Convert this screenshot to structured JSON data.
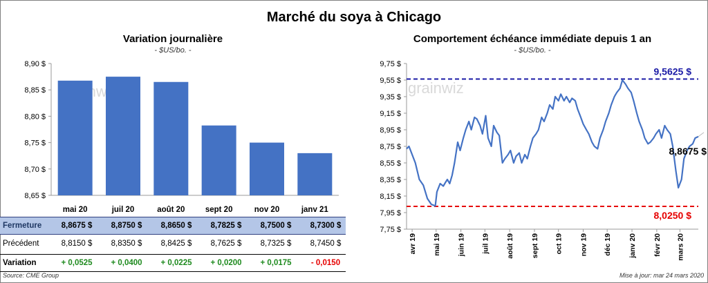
{
  "title": "Marché du soya à Chicago",
  "left_chart": {
    "title": "Variation journalière",
    "unit": "- $US/bo. -"
  },
  "right_chart": {
    "title": "Comportement  échéance immédiate depuis 1 an",
    "unit": "- $US/bo. -"
  },
  "watermark": "grainwiz",
  "table": {
    "row_close_label": "Fermeture",
    "row_prev_label": "Précédent",
    "row_var_label": "Variation",
    "close": [
      "8,8675  $",
      "8,8750  $",
      "8,8650  $",
      "8,7825  $",
      "8,7500  $",
      "8,7300  $"
    ],
    "prev": [
      "8,8150  $",
      "8,8350  $",
      "8,8425  $",
      "8,7625  $",
      "8,7325  $",
      "8,7450  $"
    ],
    "var": [
      "+ 0,0525",
      "+ 0,0400",
      "+ 0,0225",
      "+ 0,0200",
      "+ 0,0175",
      "- 0,0150"
    ],
    "var_sign": [
      "pos",
      "pos",
      "pos",
      "pos",
      "pos",
      "neg"
    ]
  },
  "footer": {
    "source": "Source: CME Group",
    "updated": "Mise à jour: mar 24 mars 2020"
  },
  "colors": {
    "bar": "#4472c4",
    "line": "#4472c4",
    "max_line": "#1a1aa6",
    "min_line": "#e60000",
    "close_row": "#b4c6e7"
  },
  "chart_data": [
    {
      "type": "bar",
      "title": "Variation journalière",
      "categories": [
        "mai 20",
        "juil 20",
        "août 20",
        "sept 20",
        "nov 20",
        "janv 21"
      ],
      "values": [
        8.8675,
        8.875,
        8.865,
        8.7825,
        8.75,
        8.73
      ],
      "ylim": [
        8.65,
        8.9
      ],
      "ytick_labels": [
        "8,65 $",
        "8,70 $",
        "8,75 $",
        "8,80 $",
        "8,85 $",
        "8,90 $"
      ],
      "yticks": [
        8.65,
        8.7,
        8.75,
        8.8,
        8.85,
        8.9
      ]
    },
    {
      "type": "line",
      "title": "Comportement  échéance immédiate depuis 1 an",
      "ylim": [
        7.75,
        9.75
      ],
      "yticks": [
        7.75,
        7.95,
        8.15,
        8.35,
        8.55,
        8.75,
        8.95,
        9.15,
        9.35,
        9.55,
        9.75
      ],
      "ytick_labels": [
        "7,75 $",
        "7,95 $",
        "8,15 $",
        "8,35 $",
        "8,55 $",
        "8,75 $",
        "8,95 $",
        "9,15 $",
        "9,35 $",
        "9,55 $",
        "9,75 $"
      ],
      "xtick_labels": [
        "avr 19",
        "mai 19",
        "juin 19",
        "juil 19",
        "août 19",
        "sept 19",
        "oct 19",
        "nov 19",
        "déc 19",
        "janv 20",
        "févr 20",
        "mars 20"
      ],
      "xticks": [
        "2019-04-01",
        "2019-05-01",
        "2019-06-01",
        "2019-07-01",
        "2019-08-01",
        "2019-09-01",
        "2019-10-01",
        "2019-11-01",
        "2019-12-01",
        "2020-01-01",
        "2020-02-01",
        "2020-03-01"
      ],
      "xlim": [
        "2019-03-25",
        "2020-03-24"
      ],
      "max": {
        "value": 9.5625,
        "label": "9,5625  $"
      },
      "min": {
        "value": 8.025,
        "label": "8,0250  $"
      },
      "last": {
        "value": 8.8675,
        "label": "8,8675 $"
      },
      "series": [
        {
          "x": [
            "2019-03-25",
            "2019-03-28",
            "2019-04-01",
            "2019-04-05",
            "2019-04-10",
            "2019-04-15",
            "2019-04-20",
            "2019-04-25",
            "2019-04-30",
            "2019-05-02",
            "2019-05-06",
            "2019-05-10",
            "2019-05-13",
            "2019-05-15",
            "2019-05-18",
            "2019-05-21",
            "2019-05-24",
            "2019-05-28",
            "2019-05-31",
            "2019-06-04",
            "2019-06-07",
            "2019-06-11",
            "2019-06-14",
            "2019-06-18",
            "2019-06-21",
            "2019-06-25",
            "2019-06-28",
            "2019-07-02",
            "2019-07-05",
            "2019-07-09",
            "2019-07-12",
            "2019-07-16",
            "2019-07-19",
            "2019-07-23",
            "2019-07-26",
            "2019-07-30",
            "2019-08-02",
            "2019-08-06",
            "2019-08-09",
            "2019-08-13",
            "2019-08-16",
            "2019-08-20",
            "2019-08-23",
            "2019-08-27",
            "2019-08-30",
            "2019-09-03",
            "2019-09-06",
            "2019-09-10",
            "2019-09-13",
            "2019-09-17",
            "2019-09-20",
            "2019-09-24",
            "2019-09-27",
            "2019-10-01",
            "2019-10-04",
            "2019-10-08",
            "2019-10-11",
            "2019-10-15",
            "2019-10-18",
            "2019-10-22",
            "2019-10-25",
            "2019-10-29",
            "2019-11-01",
            "2019-11-05",
            "2019-11-08",
            "2019-11-12",
            "2019-11-15",
            "2019-11-19",
            "2019-11-22",
            "2019-11-26",
            "2019-11-29",
            "2019-12-03",
            "2019-12-06",
            "2019-12-10",
            "2019-12-13",
            "2019-12-17",
            "2019-12-20",
            "2019-12-24",
            "2019-12-27",
            "2019-12-31",
            "2020-01-03",
            "2020-01-07",
            "2020-01-10",
            "2020-01-14",
            "2020-01-17",
            "2020-01-21",
            "2020-01-24",
            "2020-01-28",
            "2020-01-31",
            "2020-02-04",
            "2020-02-07",
            "2020-02-11",
            "2020-02-14",
            "2020-02-18",
            "2020-02-21",
            "2020-02-25",
            "2020-02-28",
            "2020-03-03",
            "2020-03-06",
            "2020-03-10",
            "2020-03-13",
            "2020-03-17",
            "2020-03-20",
            "2020-03-24"
          ],
          "values": [
            8.72,
            8.75,
            8.65,
            8.55,
            8.35,
            8.28,
            8.12,
            8.05,
            8.03,
            8.2,
            8.3,
            8.27,
            8.32,
            8.35,
            8.3,
            8.4,
            8.55,
            8.8,
            8.7,
            8.85,
            8.95,
            9.05,
            8.95,
            9.1,
            9.08,
            9.0,
            8.9,
            9.12,
            8.85,
            8.75,
            9.0,
            8.92,
            8.88,
            8.55,
            8.6,
            8.65,
            8.7,
            8.55,
            8.63,
            8.67,
            8.55,
            8.65,
            8.6,
            8.75,
            8.85,
            8.9,
            8.95,
            9.1,
            9.05,
            9.15,
            9.25,
            9.2,
            9.35,
            9.3,
            9.38,
            9.3,
            9.35,
            9.28,
            9.33,
            9.3,
            9.2,
            9.1,
            9.02,
            8.95,
            8.9,
            8.8,
            8.75,
            8.72,
            8.85,
            8.95,
            9.05,
            9.15,
            9.25,
            9.35,
            9.4,
            9.45,
            9.55,
            9.5,
            9.45,
            9.4,
            9.3,
            9.15,
            9.05,
            8.95,
            8.85,
            8.78,
            8.8,
            8.85,
            8.9,
            8.95,
            8.85,
            9.0,
            8.95,
            8.9,
            8.75,
            8.45,
            8.25,
            8.35,
            8.6,
            8.7,
            8.75,
            8.78,
            8.85,
            8.8675
          ]
        }
      ]
    }
  ]
}
